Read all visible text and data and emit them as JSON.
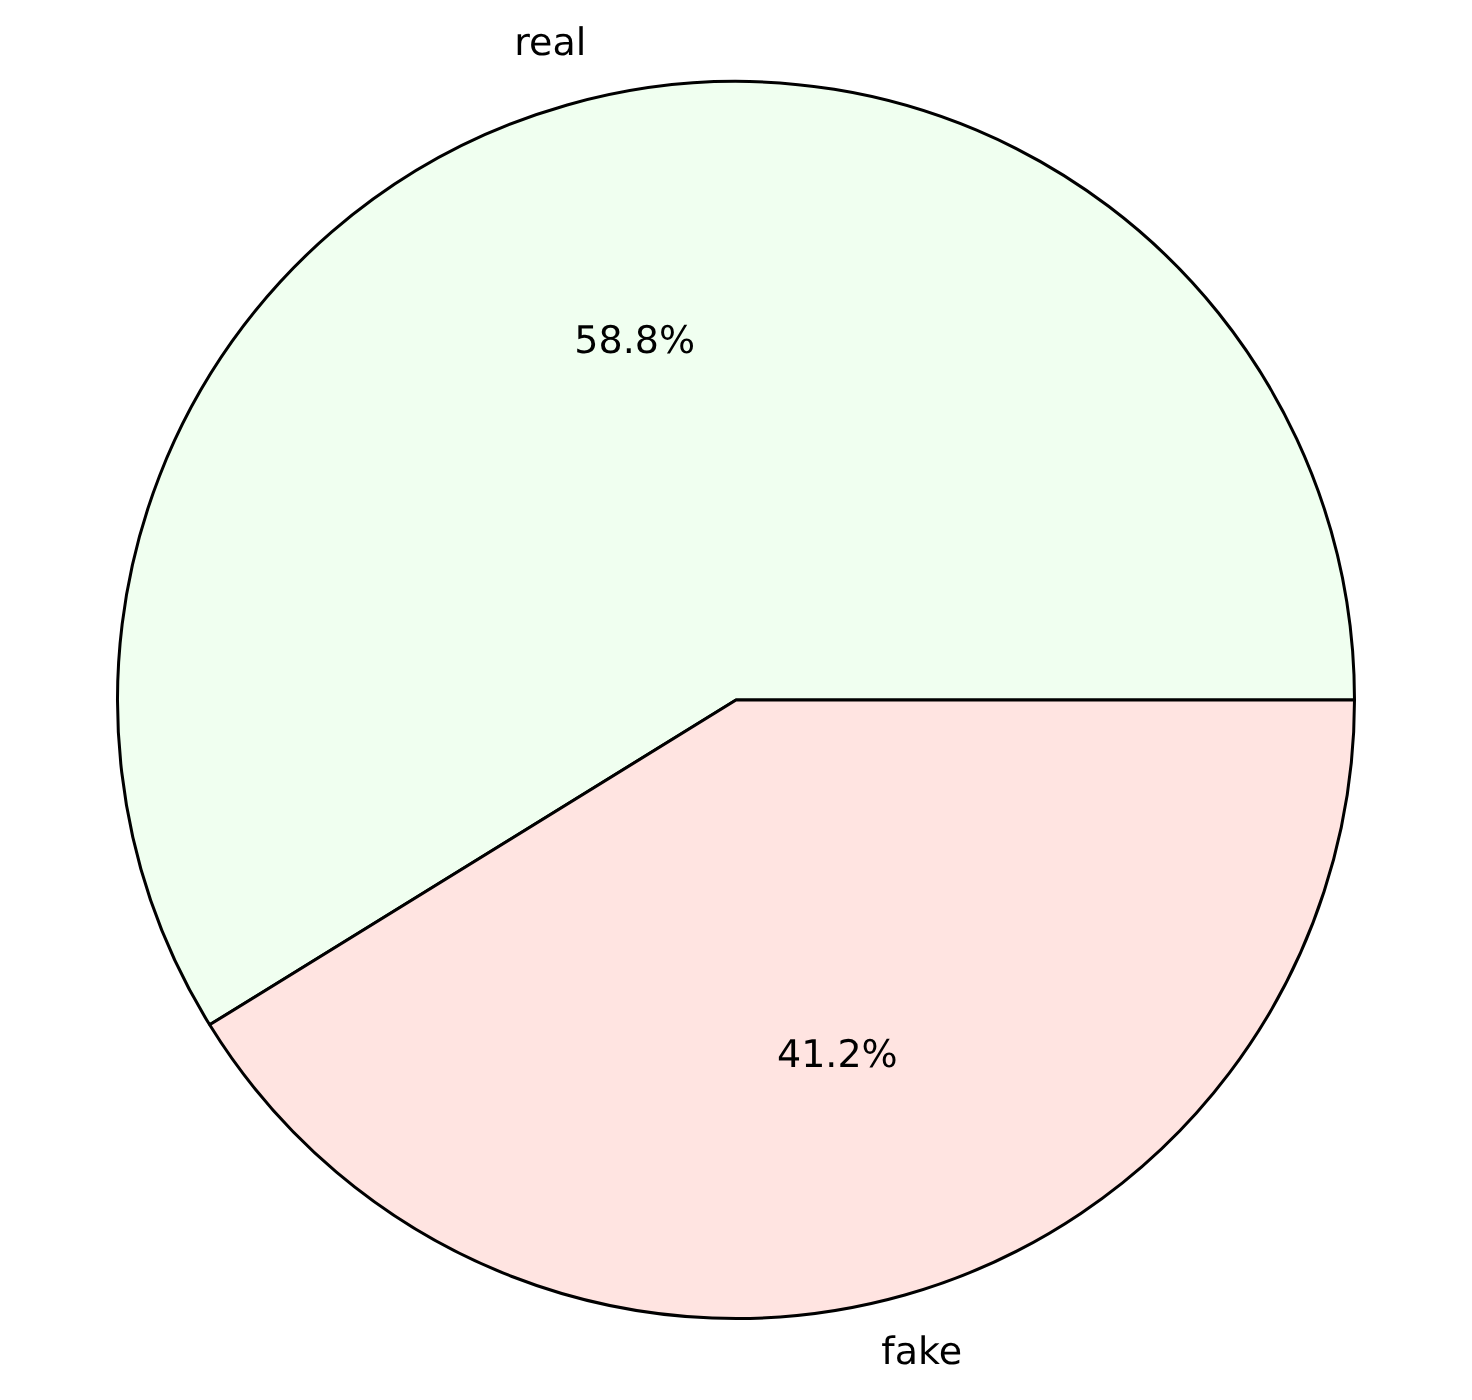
{
  "chart_data": {
    "type": "pie",
    "categories": [
      "real",
      "fake"
    ],
    "values": [
      58.8,
      41.2
    ],
    "colors": [
      "#f0fff0",
      "#ffe4e1"
    ],
    "value_labels": [
      "58.8%",
      "41.2%"
    ]
  }
}
